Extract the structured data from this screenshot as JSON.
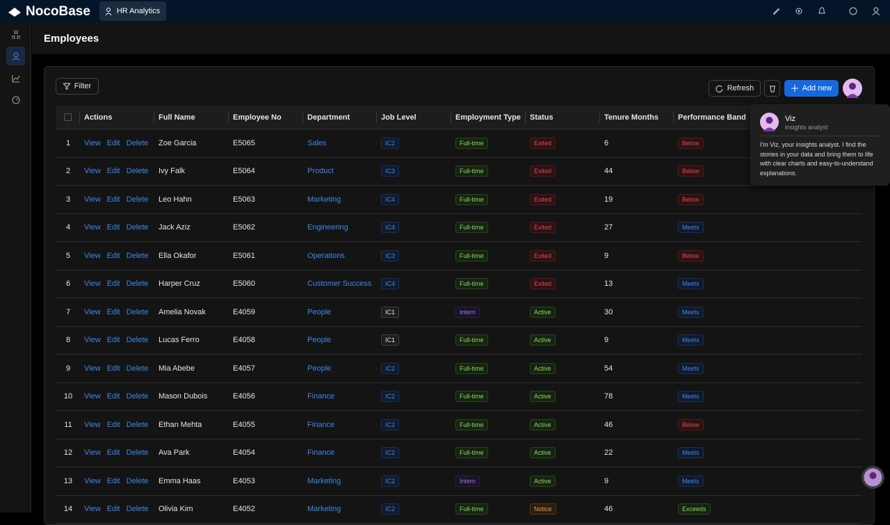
{
  "header": {
    "brand": "NocoBase",
    "tab": "HR Analytics"
  },
  "page": {
    "title": "Employees"
  },
  "toolbar": {
    "filter": "Filter",
    "refresh": "Refresh",
    "add_new": "Add new"
  },
  "table": {
    "columns": [
      "Actions",
      "Full Name",
      "Employee No",
      "Department",
      "Job Level",
      "Employment Type",
      "Status",
      "Tenure Months",
      "Performance Band"
    ],
    "actions": [
      "View",
      "Edit",
      "Delete"
    ],
    "rows": [
      {
        "no": 1,
        "full_name": "Zoe Garcia",
        "employee_no": "E5065",
        "department": "Sales",
        "job_level": {
          "text": "IC2",
          "color": "blue"
        },
        "employment_type": {
          "text": "Full-time",
          "color": "green"
        },
        "status": {
          "text": "Exited",
          "color": "red"
        },
        "tenure_months": 6,
        "performance_band": {
          "text": "Below",
          "color": "red"
        }
      },
      {
        "no": 2,
        "full_name": "Ivy Falk",
        "employee_no": "E5064",
        "department": "Product",
        "job_level": {
          "text": "IC3",
          "color": "blue"
        },
        "employment_type": {
          "text": "Full-time",
          "color": "green"
        },
        "status": {
          "text": "Exited",
          "color": "red"
        },
        "tenure_months": 44,
        "performance_band": {
          "text": "Below",
          "color": "red"
        }
      },
      {
        "no": 3,
        "full_name": "Leo Hahn",
        "employee_no": "E5063",
        "department": "Marketing",
        "job_level": {
          "text": "IC4",
          "color": "blue"
        },
        "employment_type": {
          "text": "Full-time",
          "color": "green"
        },
        "status": {
          "text": "Exited",
          "color": "red"
        },
        "tenure_months": 19,
        "performance_band": {
          "text": "Below",
          "color": "red"
        }
      },
      {
        "no": 4,
        "full_name": "Jack Aziz",
        "employee_no": "E5062",
        "department": "Engineering",
        "job_level": {
          "text": "IC4",
          "color": "blue"
        },
        "employment_type": {
          "text": "Full-time",
          "color": "green"
        },
        "status": {
          "text": "Exited",
          "color": "red"
        },
        "tenure_months": 27,
        "performance_band": {
          "text": "Meets",
          "color": "blue"
        }
      },
      {
        "no": 5,
        "full_name": "Ella Okafor",
        "employee_no": "E5061",
        "department": "Operations",
        "job_level": {
          "text": "IC3",
          "color": "blue"
        },
        "employment_type": {
          "text": "Full-time",
          "color": "green"
        },
        "status": {
          "text": "Exited",
          "color": "red"
        },
        "tenure_months": 9,
        "performance_band": {
          "text": "Below",
          "color": "red"
        }
      },
      {
        "no": 6,
        "full_name": "Harper Cruz",
        "employee_no": "E5060",
        "department": "Customer Success",
        "job_level": {
          "text": "IC4",
          "color": "blue"
        },
        "employment_type": {
          "text": "Full-time",
          "color": "green"
        },
        "status": {
          "text": "Exited",
          "color": "red"
        },
        "tenure_months": 13,
        "performance_band": {
          "text": "Meets",
          "color": "blue"
        }
      },
      {
        "no": 7,
        "full_name": "Amelia Novak",
        "employee_no": "E4059",
        "department": "People",
        "job_level": {
          "text": "IC1",
          "color": "gray"
        },
        "employment_type": {
          "text": "Intern",
          "color": "purple"
        },
        "status": {
          "text": "Active",
          "color": "green"
        },
        "tenure_months": 30,
        "performance_band": {
          "text": "Meets",
          "color": "blue"
        }
      },
      {
        "no": 8,
        "full_name": "Lucas Ferro",
        "employee_no": "E4058",
        "department": "People",
        "job_level": {
          "text": "IC1",
          "color": "gray"
        },
        "employment_type": {
          "text": "Full-time",
          "color": "green"
        },
        "status": {
          "text": "Active",
          "color": "green"
        },
        "tenure_months": 9,
        "performance_band": {
          "text": "Meets",
          "color": "blue"
        }
      },
      {
        "no": 9,
        "full_name": "Mia Abebe",
        "employee_no": "E4057",
        "department": "People",
        "job_level": {
          "text": "IC2",
          "color": "blue"
        },
        "employment_type": {
          "text": "Full-time",
          "color": "green"
        },
        "status": {
          "text": "Active",
          "color": "green"
        },
        "tenure_months": 54,
        "performance_band": {
          "text": "Meets",
          "color": "blue"
        }
      },
      {
        "no": 10,
        "full_name": "Mason Dubois",
        "employee_no": "E4056",
        "department": "Finance",
        "job_level": {
          "text": "IC2",
          "color": "blue"
        },
        "employment_type": {
          "text": "Full-time",
          "color": "green"
        },
        "status": {
          "text": "Active",
          "color": "green"
        },
        "tenure_months": 78,
        "performance_band": {
          "text": "Meets",
          "color": "blue"
        }
      },
      {
        "no": 11,
        "full_name": "Ethan Mehta",
        "employee_no": "E4055",
        "department": "Finance",
        "job_level": {
          "text": "IC2",
          "color": "blue"
        },
        "employment_type": {
          "text": "Full-time",
          "color": "green"
        },
        "status": {
          "text": "Active",
          "color": "green"
        },
        "tenure_months": 46,
        "performance_band": {
          "text": "Below",
          "color": "red"
        }
      },
      {
        "no": 12,
        "full_name": "Ava Park",
        "employee_no": "E4054",
        "department": "Finance",
        "job_level": {
          "text": "IC2",
          "color": "blue"
        },
        "employment_type": {
          "text": "Full-time",
          "color": "green"
        },
        "status": {
          "text": "Active",
          "color": "green"
        },
        "tenure_months": 22,
        "performance_band": {
          "text": "Meets",
          "color": "blue"
        }
      },
      {
        "no": 13,
        "full_name": "Emma Haas",
        "employee_no": "E4053",
        "department": "Marketing",
        "job_level": {
          "text": "IC2",
          "color": "blue"
        },
        "employment_type": {
          "text": "Intern",
          "color": "purple"
        },
        "status": {
          "text": "Active",
          "color": "green"
        },
        "tenure_months": 9,
        "performance_band": {
          "text": "Meets",
          "color": "blue"
        }
      },
      {
        "no": 14,
        "full_name": "Olivia Kim",
        "employee_no": "E4052",
        "department": "Marketing",
        "job_level": {
          "text": "IC2",
          "color": "blue"
        },
        "employment_type": {
          "text": "Full-time",
          "color": "green"
        },
        "status": {
          "text": "Notice",
          "color": "orange"
        },
        "tenure_months": 46,
        "performance_band": {
          "text": "Exceeds",
          "color": "green"
        }
      }
    ]
  },
  "assistant": {
    "name": "Viz",
    "role": "insights analyst",
    "description": "I'm Viz, your insights analyst. I find the stories in your data and bring them to life with clear charts and easy-to-understand explanations."
  }
}
